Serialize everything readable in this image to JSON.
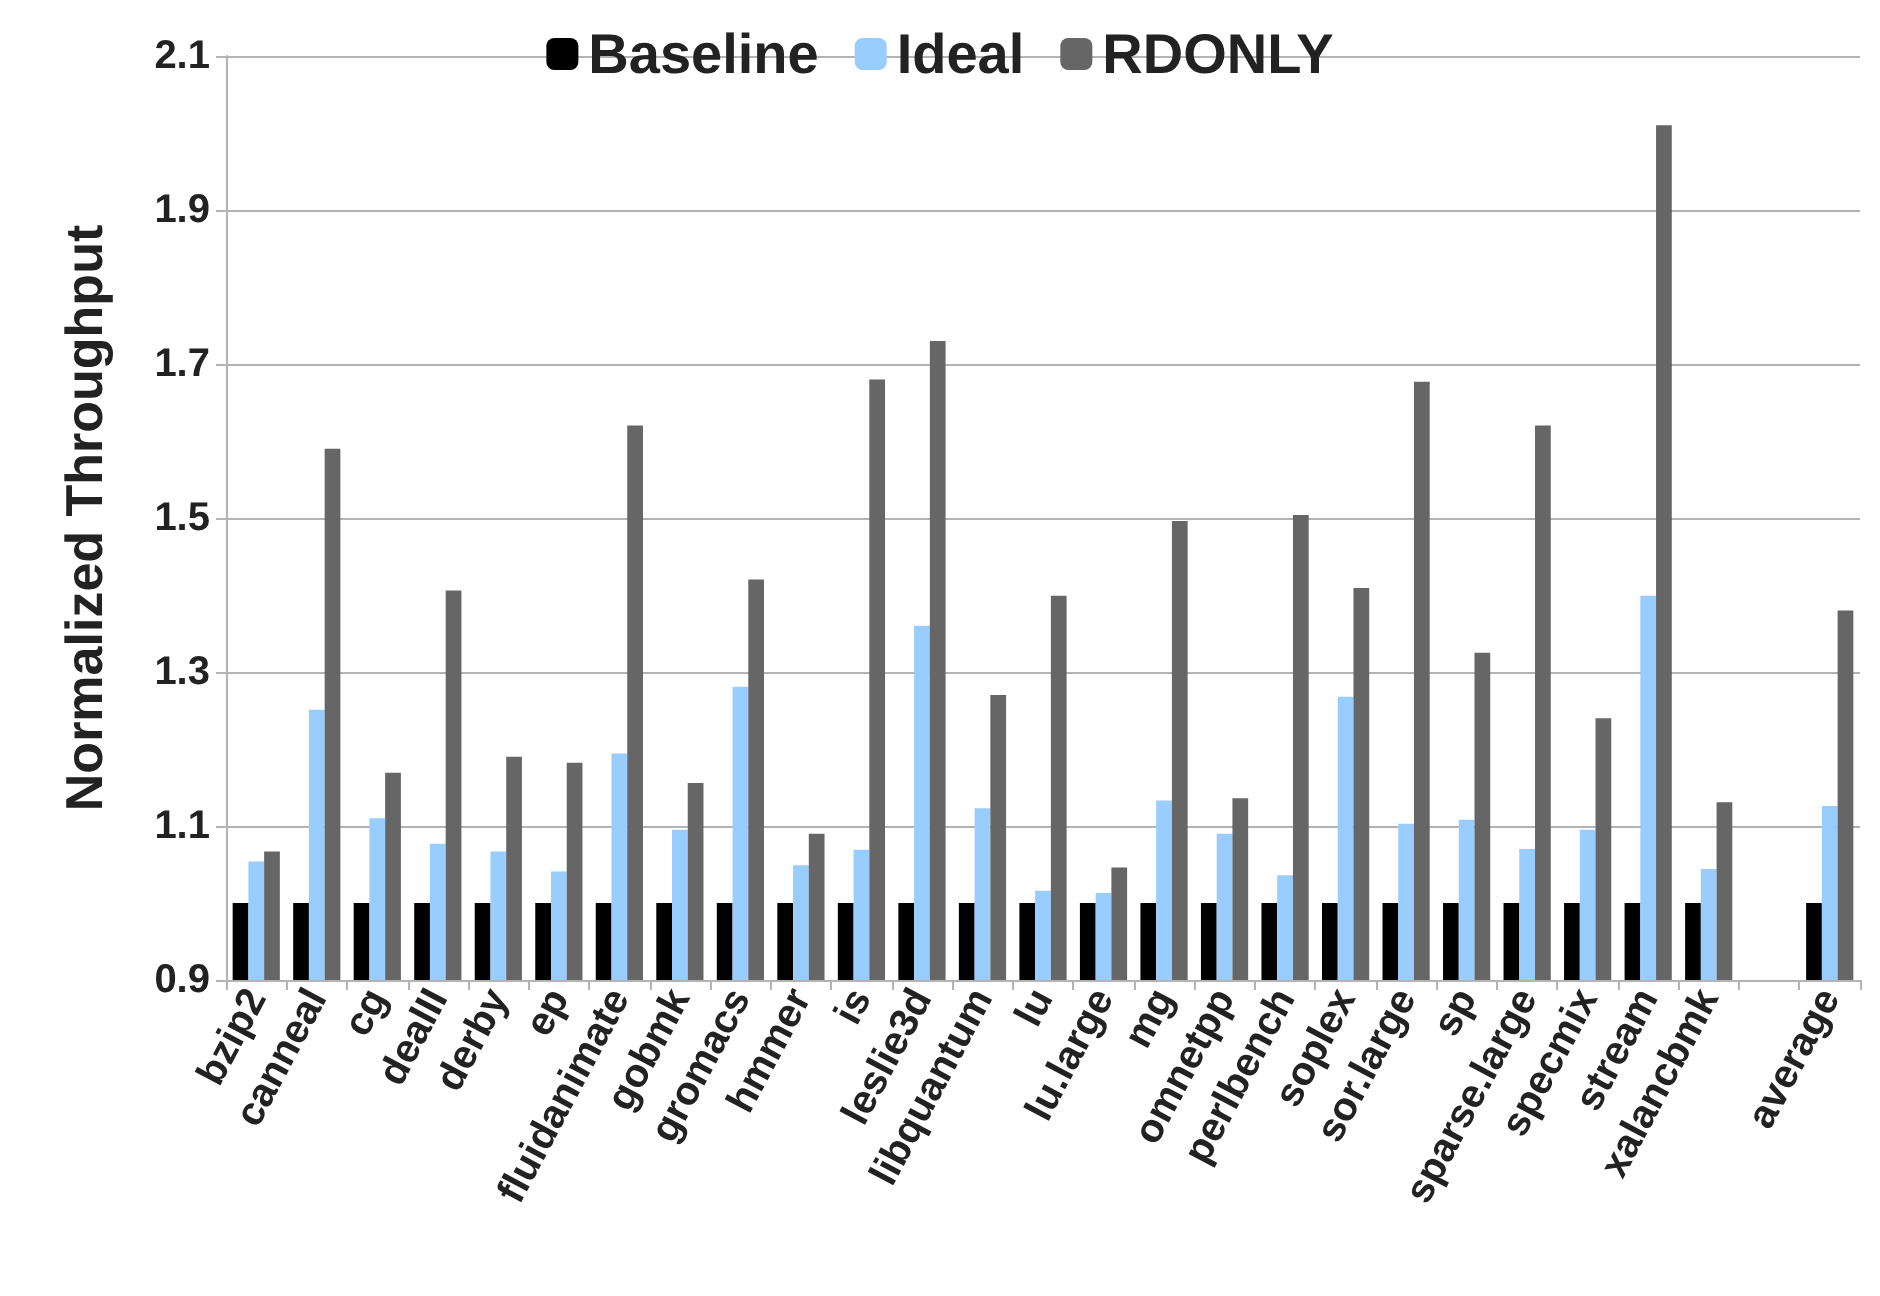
{
  "chart_data": {
    "type": "bar",
    "ylabel": "Normalized Throughput",
    "categories": [
      "bzip2",
      "canneal",
      "cg",
      "dealII",
      "derby",
      "ep",
      "fluidanimate",
      "gobmk",
      "gromacs",
      "hmmer",
      "is",
      "leslie3d",
      "libquantum",
      "lu",
      "lu.large",
      "mg",
      "omnetpp",
      "perlbench",
      "soplex",
      "sor.large",
      "sp",
      "sparse.large",
      "specmix",
      "stream",
      "xalancbmk",
      null,
      "average"
    ],
    "series": [
      {
        "name": "Baseline",
        "color": "#000000",
        "values": [
          1,
          1,
          1,
          1,
          1,
          1,
          1,
          1,
          1,
          1,
          1,
          1,
          1,
          1,
          1,
          1,
          1,
          1,
          1,
          1,
          1,
          1,
          1,
          1,
          1,
          null,
          1
        ]
      },
      {
        "name": "Ideal",
        "color": "#99ccff",
        "values": [
          1.054,
          1.251,
          1.11,
          1.077,
          1.067,
          1.041,
          1.194,
          1.095,
          1.281,
          1.049,
          1.069,
          1.36,
          1.123,
          1.016,
          1.013,
          1.133,
          1.09,
          1.036,
          1.268,
          1.103,
          1.108,
          1.07,
          1.095,
          1.399,
          1.044,
          null,
          1.126
        ]
      },
      {
        "name": "RDONLY",
        "color": "#666666",
        "values": [
          1.067,
          1.59,
          1.169,
          1.406,
          1.19,
          1.182,
          1.62,
          1.156,
          1.42,
          1.09,
          1.68,
          1.73,
          1.27,
          1.399,
          1.046,
          1.496,
          1.136,
          1.504,
          1.409,
          1.677,
          1.325,
          1.62,
          1.24,
          2.01,
          1.131,
          null,
          1.38
        ]
      }
    ],
    "ylim": [
      0.9,
      2.1
    ],
    "yticks": [
      0.9,
      1.1,
      1.3,
      1.5,
      1.7,
      1.9,
      2.1
    ],
    "grid": "y",
    "legend": "top"
  }
}
